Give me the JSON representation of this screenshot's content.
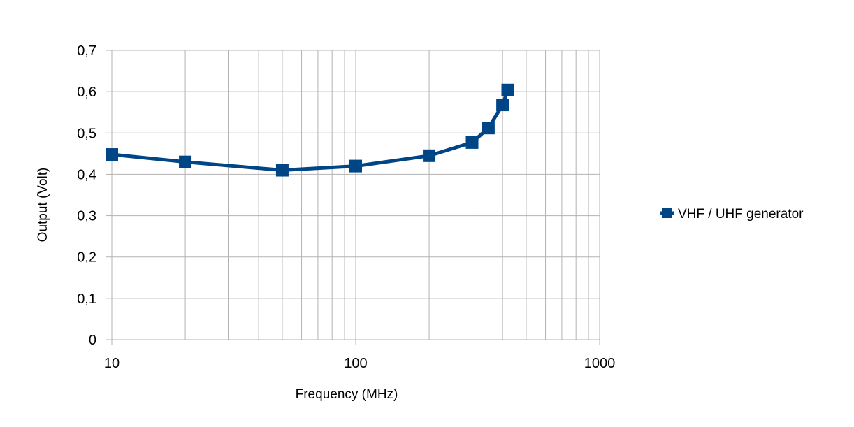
{
  "chart_data": {
    "type": "line",
    "xscale": "log",
    "xlim": [
      10,
      1000
    ],
    "ylim": [
      0,
      0.7
    ],
    "xticks": [
      "10",
      "100",
      "1000"
    ],
    "yticks": [
      "0",
      "0,1",
      "0,2",
      "0,3",
      "0,4",
      "0,5",
      "0,6",
      "0,7"
    ],
    "xlabel": "Frequency (MHz)",
    "ylabel": "Output (Volt)",
    "grid": true,
    "legend_position": "right",
    "series": [
      {
        "name": "VHF / UHF generator",
        "color": "#004586",
        "marker": "square",
        "x": [
          10,
          20,
          50,
          100,
          200,
          300,
          350,
          400,
          420
        ],
        "y": [
          0.448,
          0.43,
          0.41,
          0.42,
          0.445,
          0.477,
          0.512,
          0.568,
          0.604
        ]
      }
    ]
  }
}
